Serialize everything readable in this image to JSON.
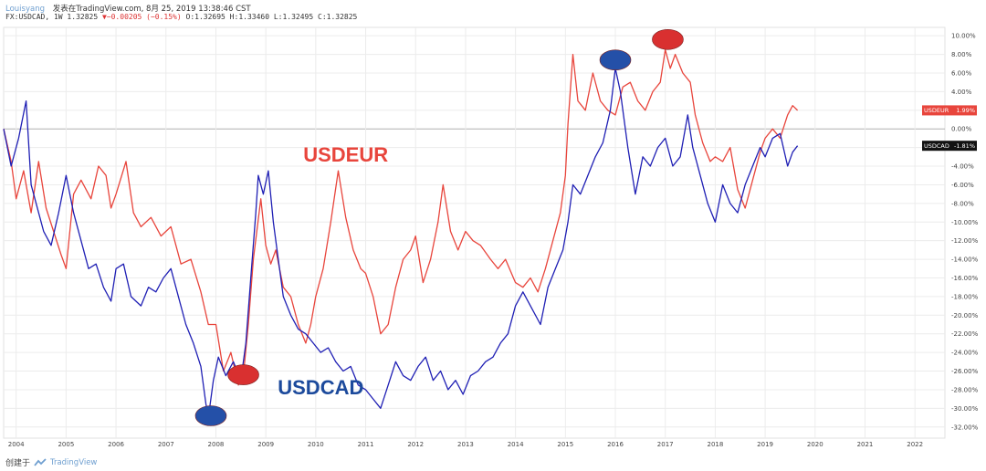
{
  "header": {
    "author": "Louisyang",
    "published_text": "发表在TradingView.com, 8月 25, 2019 13:38:46 CST",
    "symbol_text": "FX:USDCAD, 1W 1.32825",
    "change_text": "▼−0.00205 (−0.15%)",
    "ohlc_text": "O:1.32695 H:1.33460 L:1.32495 C:1.32825"
  },
  "footer": {
    "created_with": "创建于",
    "brand": "TradingView"
  },
  "colors": {
    "usdeur": "#e8453c",
    "usdcad": "#1f1fb4",
    "grid": "#ececec",
    "zero_line": "#b0b0b0",
    "marker_red": "#d93030",
    "marker_blue": "#2450a8",
    "tag_usdcad": "#111111"
  },
  "chart_data": {
    "type": "line",
    "title": "",
    "xlabel": "",
    "ylabel": "",
    "x_ticks": [
      "2004",
      "2005",
      "2006",
      "2007",
      "2008",
      "2009",
      "2010",
      "2011",
      "2012",
      "2013",
      "2014",
      "2015",
      "2016",
      "2017",
      "2018",
      "2019",
      "2020",
      "2021",
      "2022"
    ],
    "y_ticks": [
      "10.00%",
      "8.00%",
      "6.00%",
      "4.00%",
      "2.00%",
      "0.00%",
      "-2.00%",
      "-4.00%",
      "-6.00%",
      "-8.00%",
      "-10.00%",
      "-12.00%",
      "-14.00%",
      "-16.00%",
      "-18.00%",
      "-20.00%",
      "-22.00%",
      "-24.00%",
      "-26.00%",
      "-28.00%",
      "-30.00%",
      "-32.00%"
    ],
    "xlim": [
      2003.75,
      2022.6
    ],
    "ylim": [
      -33.2,
      10.9
    ],
    "grid": true,
    "series": [
      {
        "name": "USDEUR",
        "color": "#e8453c",
        "label": "USDEUR",
        "last_value_label": "1.99%",
        "x": [
          2003.75,
          2003.9,
          2004.0,
          2004.15,
          2004.3,
          2004.45,
          2004.6,
          2004.75,
          2004.9,
          2005.0,
          2005.15,
          2005.3,
          2005.5,
          2005.65,
          2005.8,
          2005.9,
          2006.0,
          2006.2,
          2006.35,
          2006.5,
          2006.7,
          2006.9,
          2007.1,
          2007.3,
          2007.5,
          2007.7,
          2007.85,
          2008.0,
          2008.15,
          2008.3,
          2008.45,
          2008.55,
          2008.65,
          2008.75,
          2008.9,
          2009.0,
          2009.1,
          2009.2,
          2009.35,
          2009.5,
          2009.65,
          2009.8,
          2009.9,
          2010.0,
          2010.15,
          2010.3,
          2010.45,
          2010.6,
          2010.75,
          2010.9,
          2011.0,
          2011.15,
          2011.3,
          2011.45,
          2011.6,
          2011.75,
          2011.9,
          2012.0,
          2012.15,
          2012.3,
          2012.45,
          2012.55,
          2012.7,
          2012.85,
          2013.0,
          2013.15,
          2013.3,
          2013.5,
          2013.65,
          2013.8,
          2014.0,
          2014.15,
          2014.3,
          2014.45,
          2014.6,
          2014.75,
          2014.9,
          2015.0,
          2015.05,
          2015.15,
          2015.25,
          2015.4,
          2015.55,
          2015.7,
          2015.85,
          2016.0,
          2016.15,
          2016.3,
          2016.45,
          2016.6,
          2016.75,
          2016.9,
          2017.0,
          2017.1,
          2017.2,
          2017.35,
          2017.5,
          2017.6,
          2017.75,
          2017.9,
          2018.0,
          2018.15,
          2018.3,
          2018.45,
          2018.6,
          2018.75,
          2018.9,
          2019.0,
          2019.15,
          2019.3,
          2019.45,
          2019.55,
          2019.65
        ],
        "values": [
          0.0,
          -3.5,
          -7.5,
          -4.5,
          -9.0,
          -3.5,
          -8.5,
          -11.0,
          -13.5,
          -15.0,
          -7.0,
          -5.5,
          -7.5,
          -4.0,
          -5.0,
          -8.5,
          -7.0,
          -3.5,
          -9.0,
          -10.5,
          -9.5,
          -11.5,
          -10.5,
          -14.5,
          -14.0,
          -17.5,
          -21.0,
          -21.0,
          -26.0,
          -24.0,
          -27.5,
          -26.5,
          -21.0,
          -14.0,
          -7.5,
          -12.5,
          -14.5,
          -13.0,
          -17.0,
          -18.0,
          -21.0,
          -23.0,
          -21.0,
          -18.0,
          -15.0,
          -10.0,
          -4.5,
          -9.5,
          -13.0,
          -15.0,
          -15.5,
          -18.0,
          -22.0,
          -21.0,
          -17.0,
          -14.0,
          -13.0,
          -11.5,
          -16.5,
          -14.0,
          -10.0,
          -6.0,
          -11.0,
          -13.0,
          -11.0,
          -12.0,
          -12.5,
          -14.0,
          -15.0,
          -14.0,
          -16.5,
          -17.0,
          -16.0,
          -17.5,
          -15.0,
          -12.0,
          -9.0,
          -5.0,
          0.5,
          8.0,
          3.0,
          2.0,
          6.0,
          3.0,
          2.0,
          1.5,
          4.5,
          5.0,
          3.0,
          2.0,
          4.0,
          5.0,
          8.5,
          6.5,
          8.0,
          6.0,
          5.0,
          1.5,
          -1.5,
          -3.5,
          -3.0,
          -3.5,
          -2.0,
          -6.5,
          -8.5,
          -5.5,
          -2.5,
          -1.0,
          0.0,
          -1.0,
          1.5,
          2.5,
          1.99
        ]
      },
      {
        "name": "USDCAD",
        "color": "#1f1fb4",
        "label": "USDCAD",
        "last_value_label": "-1.81%",
        "x": [
          2003.75,
          2003.9,
          2004.05,
          2004.2,
          2004.3,
          2004.4,
          2004.55,
          2004.7,
          2004.85,
          2005.0,
          2005.15,
          2005.3,
          2005.45,
          2005.6,
          2005.75,
          2005.9,
          2006.0,
          2006.15,
          2006.3,
          2006.5,
          2006.65,
          2006.8,
          2006.95,
          2007.1,
          2007.25,
          2007.4,
          2007.55,
          2007.7,
          2007.8,
          2007.85,
          2007.95,
          2008.05,
          2008.2,
          2008.35,
          2008.5,
          2008.6,
          2008.7,
          2008.8,
          2008.85,
          2008.95,
          2009.05,
          2009.15,
          2009.25,
          2009.35,
          2009.5,
          2009.65,
          2009.8,
          2009.95,
          2010.1,
          2010.25,
          2010.4,
          2010.55,
          2010.7,
          2010.85,
          2011.0,
          2011.15,
          2011.3,
          2011.45,
          2011.6,
          2011.75,
          2011.9,
          2012.05,
          2012.2,
          2012.35,
          2012.5,
          2012.65,
          2012.8,
          2012.95,
          2013.1,
          2013.25,
          2013.4,
          2013.55,
          2013.7,
          2013.85,
          2014.0,
          2014.15,
          2014.3,
          2014.5,
          2014.65,
          2014.8,
          2014.95,
          2015.05,
          2015.15,
          2015.3,
          2015.45,
          2015.6,
          2015.75,
          2015.9,
          2016.0,
          2016.1,
          2016.25,
          2016.4,
          2016.55,
          2016.7,
          2016.85,
          2017.0,
          2017.15,
          2017.3,
          2017.45,
          2017.55,
          2017.7,
          2017.85,
          2018.0,
          2018.15,
          2018.3,
          2018.45,
          2018.6,
          2018.75,
          2018.9,
          2019.0,
          2019.15,
          2019.3,
          2019.45,
          2019.55,
          2019.65
        ],
        "values": [
          0.0,
          -4.0,
          -1.0,
          3.0,
          -6.0,
          -8.0,
          -11.0,
          -12.5,
          -9.0,
          -5.0,
          -9.0,
          -12.0,
          -15.0,
          -14.5,
          -17.0,
          -18.5,
          -15.0,
          -14.5,
          -18.0,
          -19.0,
          -17.0,
          -17.5,
          -16.0,
          -15.0,
          -18.0,
          -21.0,
          -23.0,
          -25.5,
          -29.5,
          -31.0,
          -27.0,
          -24.5,
          -26.5,
          -25.0,
          -27.0,
          -23.0,
          -16.0,
          -9.0,
          -5.0,
          -7.0,
          -4.5,
          -10.0,
          -14.0,
          -18.0,
          -20.0,
          -21.5,
          -22.0,
          -23.0,
          -24.0,
          -23.5,
          -25.0,
          -26.0,
          -25.5,
          -27.5,
          -28.0,
          -29.0,
          -30.0,
          -27.5,
          -25.0,
          -26.5,
          -27.0,
          -25.5,
          -24.5,
          -27.0,
          -26.0,
          -28.0,
          -27.0,
          -28.5,
          -26.5,
          -26.0,
          -25.0,
          -24.5,
          -23.0,
          -22.0,
          -19.0,
          -17.5,
          -19.0,
          -21.0,
          -17.0,
          -15.0,
          -13.0,
          -10.0,
          -6.0,
          -7.0,
          -5.0,
          -3.0,
          -1.5,
          2.0,
          6.5,
          4.0,
          -2.0,
          -7.0,
          -3.0,
          -4.0,
          -2.0,
          -1.0,
          -4.0,
          -3.0,
          1.5,
          -2.0,
          -5.0,
          -8.0,
          -10.0,
          -6.0,
          -8.0,
          -9.0,
          -6.0,
          -4.0,
          -2.0,
          -3.0,
          -1.0,
          -0.5,
          -4.0,
          -2.5,
          -1.81
        ]
      }
    ],
    "text_labels": [
      {
        "text": "USDEUR",
        "x": 2010.6,
        "y": -3.5,
        "color": "#e8453c"
      },
      {
        "text": "USDCAD",
        "x": 2010.1,
        "y": -28.5,
        "color": "#1c4a9c"
      }
    ],
    "markers": [
      {
        "name": "usdcad-low-2007",
        "x": 2007.9,
        "y": -30.8,
        "color": "#2450a8"
      },
      {
        "name": "usdeur-low-2008",
        "x": 2008.55,
        "y": -26.4,
        "color": "#d93030"
      },
      {
        "name": "usdcad-high-2016",
        "x": 2016.0,
        "y": 7.4,
        "color": "#2450a8"
      },
      {
        "name": "usdeur-high-2017",
        "x": 2017.05,
        "y": 9.6,
        "color": "#d93030"
      }
    ]
  }
}
